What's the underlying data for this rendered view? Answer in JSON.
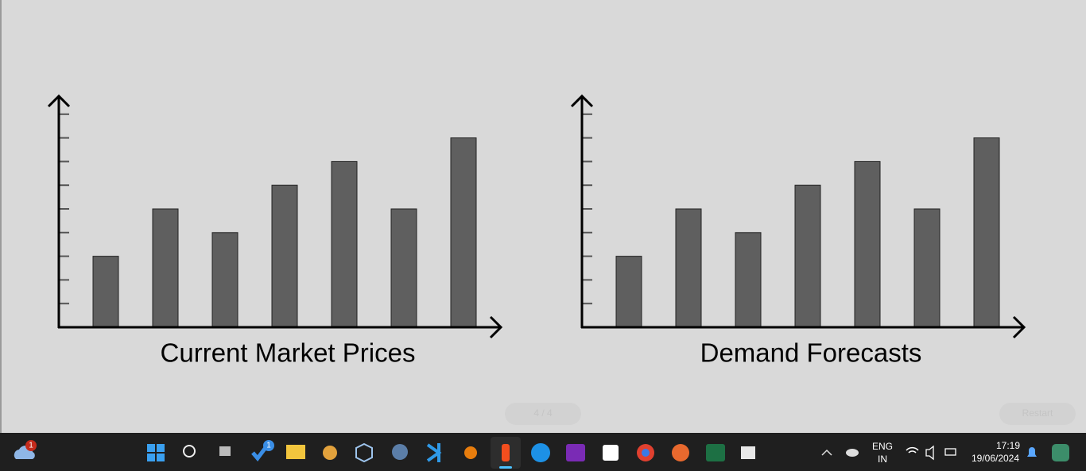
{
  "chart_data": [
    {
      "type": "bar",
      "title": "Current Market Prices",
      "categories": [
        null,
        null,
        null,
        null,
        null,
        null,
        null
      ],
      "values": [
        3,
        5,
        4,
        6,
        7,
        5,
        8
      ],
      "color": "#5f5f5f",
      "ylim": [
        0,
        10
      ],
      "yticks": [
        1,
        2,
        3,
        4,
        5,
        6,
        7,
        8,
        9
      ]
    },
    {
      "type": "bar",
      "title": "Demand Forecasts",
      "categories": [
        null,
        null,
        null,
        null,
        null,
        null,
        null
      ],
      "values": [
        3,
        5,
        4,
        6,
        7,
        5,
        8
      ],
      "color": "#5f5f5f",
      "ylim": [
        0,
        10
      ],
      "yticks": [
        1,
        2,
        3,
        4,
        5,
        6,
        7,
        8,
        9
      ]
    }
  ],
  "slide_controls": {
    "pager": "4 / 4",
    "restart": "Restart"
  },
  "taskbar": {
    "weather_badge": "1",
    "app_badge": "1",
    "language": "ENG",
    "region": "IN",
    "time": "17:19",
    "date": "19/06/2024"
  }
}
